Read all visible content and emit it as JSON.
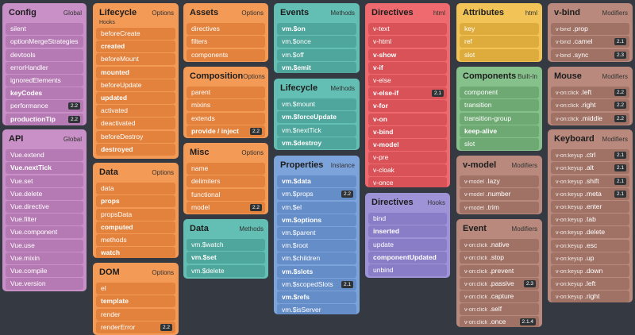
{
  "cards": {
    "config": {
      "title": "Config",
      "tag": "Global",
      "items": [
        {
          "t": "silent"
        },
        {
          "t": "optionMergeStrategies"
        },
        {
          "t": "devtools"
        },
        {
          "t": "errorHandler"
        },
        {
          "t": "ignoredElements"
        },
        {
          "t": "keyCodes",
          "bold": true
        },
        {
          "t": "performance",
          "badge": "2.2"
        },
        {
          "t": "productionTip",
          "badge": "2.2",
          "bold": true
        }
      ]
    },
    "api": {
      "title": "API",
      "tag": "Global",
      "items": [
        {
          "t": "Vue.extend"
        },
        {
          "t": "Vue.nextTick",
          "bold": true
        },
        {
          "t": "Vue.set"
        },
        {
          "t": "Vue.delete"
        },
        {
          "t": "Vue.directive"
        },
        {
          "t": "Vue.filter"
        },
        {
          "t": "Vue.component"
        },
        {
          "t": "Vue.use"
        },
        {
          "t": "Vue.mixin"
        },
        {
          "t": "Vue.compile"
        },
        {
          "t": "Vue.version"
        }
      ]
    },
    "lifecycle_hooks": {
      "title": "Lifecycle",
      "sub": "Hooks",
      "tag": "Options",
      "items": [
        {
          "t": "beforeCreate"
        },
        {
          "t": "created",
          "bold": true
        },
        {
          "t": "beforeMount"
        },
        {
          "t": "mounted",
          "bold": true
        },
        {
          "t": "beforeUpdate"
        },
        {
          "t": "updated",
          "bold": true
        },
        {
          "t": "activated"
        },
        {
          "t": "deactivated"
        },
        {
          "t": "beforeDestroy"
        },
        {
          "t": "destroyed",
          "bold": true
        }
      ]
    },
    "data_options": {
      "title": "Data",
      "tag": "Options",
      "items": [
        {
          "t": "data"
        },
        {
          "t": "props",
          "bold": true
        },
        {
          "t": "propsData"
        },
        {
          "t": "computed",
          "bold": true
        },
        {
          "t": "methods"
        },
        {
          "t": "watch",
          "bold": true
        }
      ]
    },
    "dom": {
      "title": "DOM",
      "tag": "Options",
      "items": [
        {
          "t": "el"
        },
        {
          "t": "template",
          "bold": true
        },
        {
          "t": "render"
        },
        {
          "t": "renderError",
          "badge": "2.2"
        }
      ]
    },
    "assets": {
      "title": "Assets",
      "tag": "Options",
      "items": [
        {
          "t": "directives"
        },
        {
          "t": "filters"
        },
        {
          "t": "components"
        }
      ]
    },
    "composition": {
      "title": "Composition",
      "tag": "Options",
      "items": [
        {
          "t": "parent"
        },
        {
          "t": "mixins"
        },
        {
          "t": "extends"
        },
        {
          "t": "provide / inject",
          "badge": "2.2",
          "bold": true
        }
      ]
    },
    "misc": {
      "title": "Misc",
      "tag": "Options",
      "items": [
        {
          "t": "name"
        },
        {
          "t": "delimiters"
        },
        {
          "t": "functional"
        },
        {
          "t": "model",
          "badge": "2.2"
        }
      ]
    },
    "data_methods": {
      "title": "Data",
      "tag": "Methods",
      "items": [
        {
          "t": "vm.$watch"
        },
        {
          "t": "vm.$set",
          "bold": true
        },
        {
          "t": "vm.$delete"
        }
      ]
    },
    "events": {
      "title": "Events",
      "tag": "Methods",
      "items": [
        {
          "t": "vm.$on",
          "bold": true
        },
        {
          "t": "vm.$once"
        },
        {
          "t": "vm.$off"
        },
        {
          "t": "vm.$emit",
          "bold": true
        }
      ]
    },
    "lifecycle_methods": {
      "title": "Lifecycle",
      "tag": "Methods",
      "items": [
        {
          "t": "vm.$mount"
        },
        {
          "t": "vm.$forceUpdate",
          "bold": true
        },
        {
          "t": "vm.$nextTick"
        },
        {
          "t": "vm.$destroy",
          "bold": true
        }
      ]
    },
    "properties": {
      "title": "Properties",
      "tag": "Instance",
      "items": [
        {
          "t": "vm.$data",
          "bold": true
        },
        {
          "t": "vm.$props",
          "badge": "2.2"
        },
        {
          "t": "vm.$el"
        },
        {
          "t": "vm.$options",
          "bold": true
        },
        {
          "t": "vm.$parent"
        },
        {
          "t": "vm.$root"
        },
        {
          "t": "vm.$children"
        },
        {
          "t": "vm.$slots",
          "bold": true
        },
        {
          "t": "vm.$scopedSlots",
          "badge": "2.1"
        },
        {
          "t": "vm.$refs",
          "bold": true
        },
        {
          "t": "vm.$isServer"
        }
      ]
    },
    "directives_html": {
      "title": "Directives",
      "tag": "html",
      "items": [
        {
          "t": "v-text"
        },
        {
          "t": "v-html"
        },
        {
          "t": "v-show",
          "bold": true
        },
        {
          "t": "v-if",
          "bold": true
        },
        {
          "t": "v-else"
        },
        {
          "t": "v-else-if",
          "badge": "2.1",
          "bold": true
        },
        {
          "t": "v-for",
          "bold": true
        },
        {
          "t": "v-on",
          "bold": true
        },
        {
          "t": "v-bind",
          "bold": true
        },
        {
          "t": "v-model",
          "bold": true
        },
        {
          "t": "v-pre"
        },
        {
          "t": "v-cloak"
        },
        {
          "t": "v-once"
        }
      ]
    },
    "directives_hooks": {
      "title": "Directives",
      "tag": "Hooks",
      "items": [
        {
          "t": "bind"
        },
        {
          "t": "inserted",
          "bold": true
        },
        {
          "t": "update"
        },
        {
          "t": "componentUpdated",
          "bold": true
        },
        {
          "t": "unbind"
        }
      ]
    },
    "attributes": {
      "title": "Attributes",
      "tag": "html",
      "items": [
        {
          "t": "key"
        },
        {
          "t": "ref"
        },
        {
          "t": "slot"
        }
      ]
    },
    "components": {
      "title": "Components",
      "tag": "Built-In",
      "items": [
        {
          "t": "component"
        },
        {
          "t": "transition"
        },
        {
          "t": "transition-group"
        },
        {
          "t": "keep-alive",
          "bold": true
        },
        {
          "t": "slot"
        }
      ]
    },
    "vmodel": {
      "title": "v-model",
      "tag": "Modifiers",
      "items": [
        {
          "p": "v-model",
          "t": ".lazy"
        },
        {
          "p": "v-model",
          "t": ".number"
        },
        {
          "p": "v-model",
          "t": ".trim"
        }
      ]
    },
    "event": {
      "title": "Event",
      "tag": "Modifiers",
      "items": [
        {
          "p": "v-on:click",
          "t": ".native"
        },
        {
          "p": "v-on:click",
          "t": ".stop"
        },
        {
          "p": "v-on:click",
          "t": ".prevent"
        },
        {
          "p": "v-on:click",
          "t": ".passive",
          "badge": "2.3"
        },
        {
          "p": "v-on:click",
          "t": ".capture"
        },
        {
          "p": "v-on:click",
          "t": ".self"
        },
        {
          "p": "v-on:click",
          "t": ".once",
          "badge": "2.1.4"
        }
      ]
    },
    "vbind": {
      "title": "v-bind",
      "tag": "Modifiers",
      "items": [
        {
          "p": "v-bind",
          "t": ".prop"
        },
        {
          "p": "v-bind",
          "t": ".camel",
          "badge": "2.1"
        },
        {
          "p": "v-bind",
          "t": ".sync",
          "badge": "2.3"
        }
      ]
    },
    "mouse": {
      "title": "Mouse",
      "tag": "Modifiers",
      "items": [
        {
          "p": "v-on:click",
          "t": ".left",
          "badge": "2.2"
        },
        {
          "p": "v-on:click",
          "t": ".right",
          "badge": "2.2"
        },
        {
          "p": "v-on:click",
          "t": ".middle",
          "badge": "2.2"
        }
      ]
    },
    "keyboard": {
      "title": "Keyboard",
      "tag": "Modifiers",
      "items": [
        {
          "p": "v-on:keyup",
          "t": ".ctrl",
          "badge": "2.1"
        },
        {
          "p": "v-on:keyup",
          "t": ".alt",
          "badge": "2.1"
        },
        {
          "p": "v-on:keyup",
          "t": ".shift",
          "badge": "2.1"
        },
        {
          "p": "v-on:keyup",
          "t": ".meta",
          "badge": "2.1"
        },
        {
          "p": "v-on:keyup",
          "t": ".enter"
        },
        {
          "p": "v-on:keyup",
          "t": ".tab"
        },
        {
          "p": "v-on:keyup",
          "t": ".delete"
        },
        {
          "p": "v-on:keyup",
          "t": ".esc"
        },
        {
          "p": "v-on:keyup",
          "t": ".up"
        },
        {
          "p": "v-on:keyup",
          "t": ".down"
        },
        {
          "p": "v-on:keyup",
          "t": ".left"
        },
        {
          "p": "v-on:keyup",
          "t": ".right"
        }
      ]
    }
  }
}
